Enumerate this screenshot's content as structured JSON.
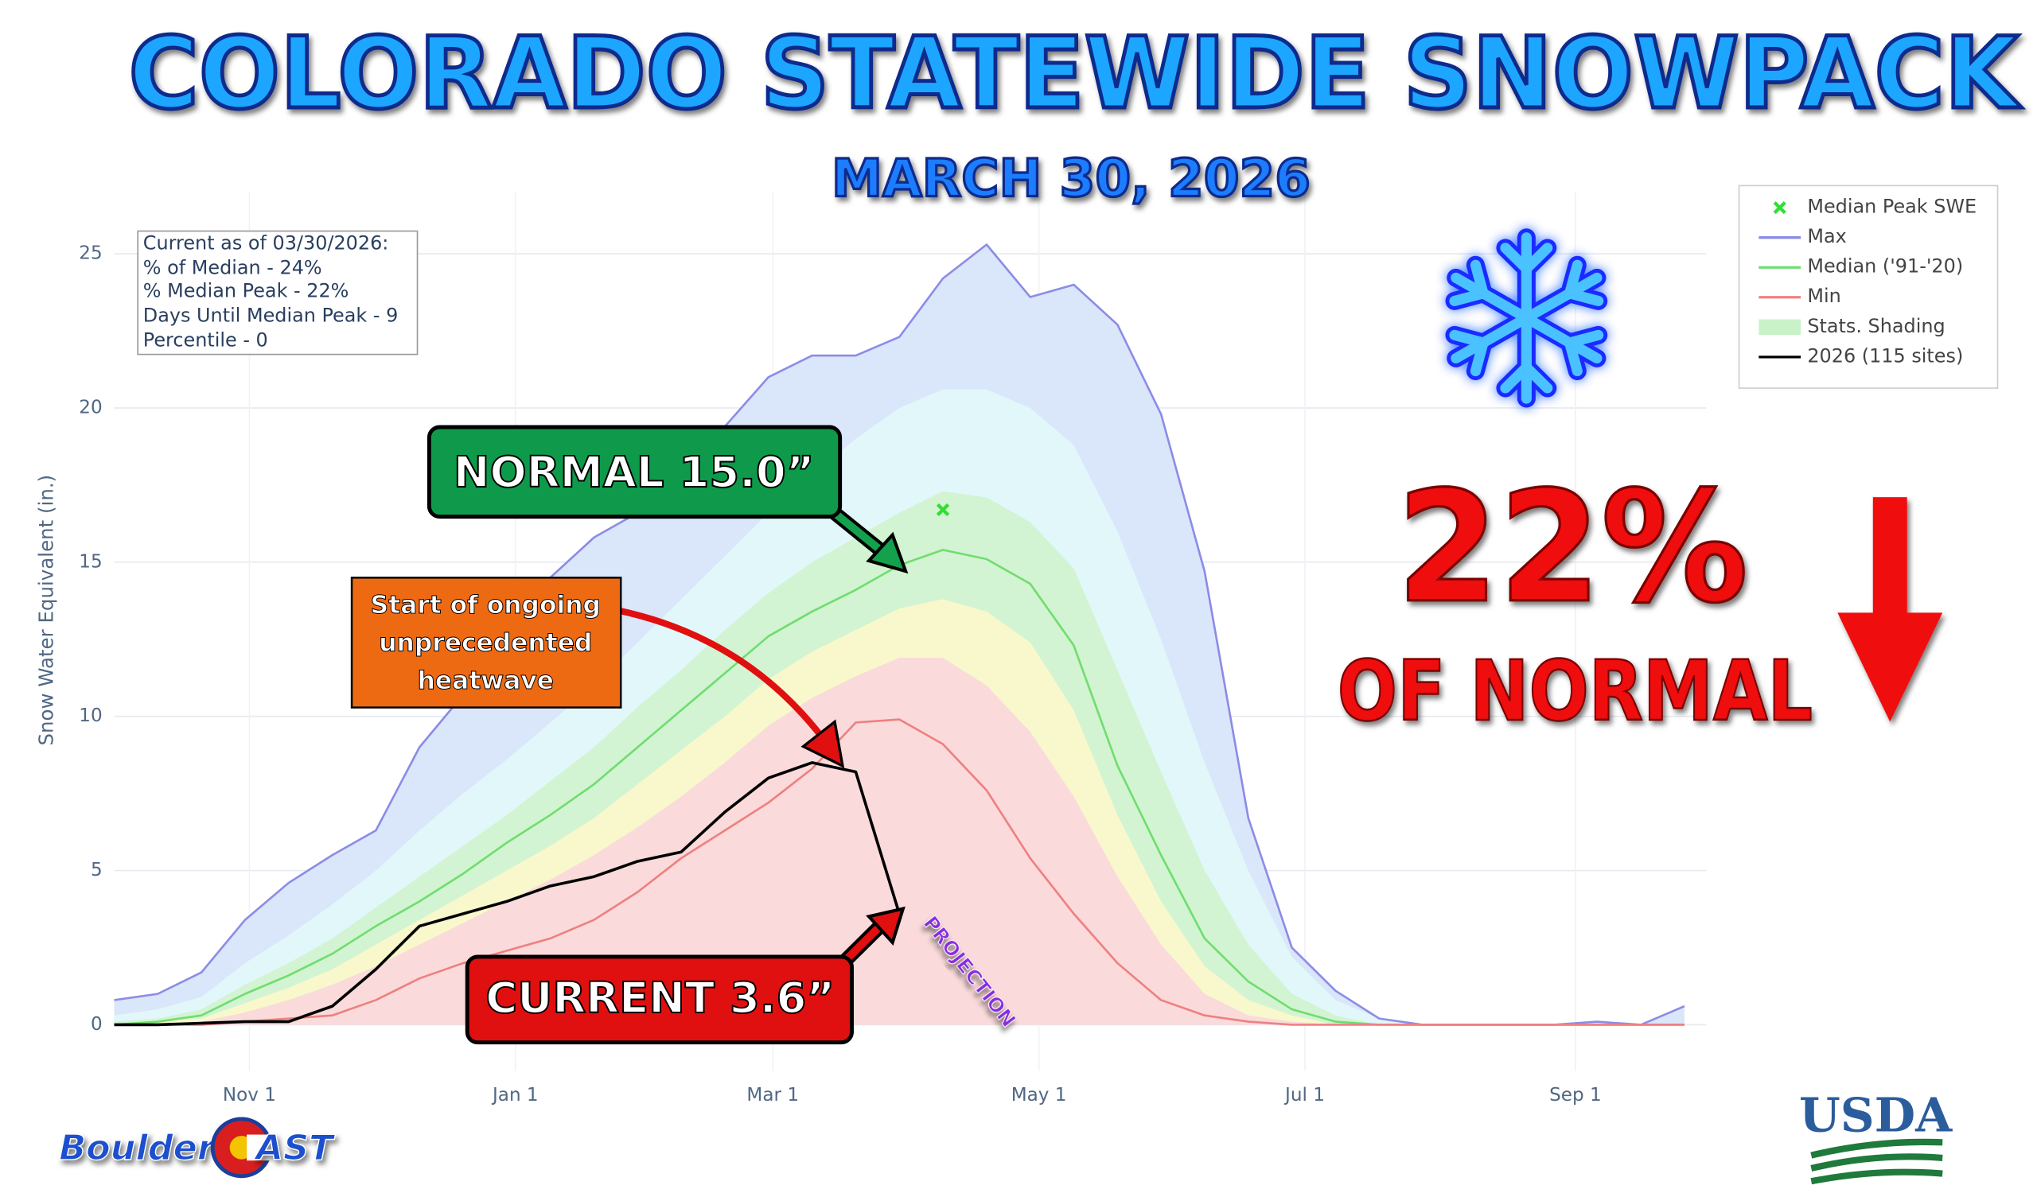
{
  "chart_data": {
    "type": "area",
    "title": "COLORADO STATEWIDE SNOWPACK",
    "subtitle": "MARCH 30, 2026",
    "y_label": "Snow Water Equivalent (in.)",
    "info_box": [
      "Current as of 03/30/2026:",
      "% of Median - 24%",
      "% Median Peak - 22%",
      "Days Until Median Peak - 9",
      "Percentile - 0"
    ],
    "x": [
      0,
      10,
      20,
      30,
      40,
      50,
      60,
      70,
      80,
      90,
      100,
      110,
      120,
      130,
      140,
      150,
      160,
      170,
      180,
      190,
      200,
      210,
      220,
      230,
      240,
      250,
      260,
      270,
      280,
      290,
      300,
      310,
      320,
      330,
      340,
      350,
      360
    ],
    "xlim": [
      0,
      365
    ],
    "xticks": [
      {
        "value": 31,
        "label": "Nov 1"
      },
      {
        "value": 92,
        "label": "Jan 1"
      },
      {
        "value": 151,
        "label": "Mar 1"
      },
      {
        "value": 212,
        "label": "May 1"
      },
      {
        "value": 273,
        "label": "Jul 1"
      },
      {
        "value": 335,
        "label": "Sep 1"
      }
    ],
    "ylim": [
      -1.5,
      27
    ],
    "yticks": [
      0,
      5,
      10,
      15,
      20,
      25
    ],
    "grid": true,
    "legend": "top-right",
    "shading": {
      "name": "Stats. Shading",
      "color": "#c9f2c9",
      "colors": [
        "#dae6fa",
        "#e2f7fa",
        "#d2f4d2",
        "#f8f8cc",
        "#fadada"
      ],
      "bounds": [
        [
          0.3,
          0.5,
          0.9,
          2.0,
          2.9,
          3.9,
          5.0,
          6.3,
          7.5,
          8.6,
          9.8,
          11.0,
          12.4,
          13.8,
          15.2,
          16.6,
          17.8,
          19.0,
          20.0,
          20.6,
          20.6,
          20.0,
          18.8,
          16.0,
          12.5,
          8.5,
          5.0,
          2.2,
          0.8,
          0.2,
          0,
          0,
          0,
          0,
          0,
          0,
          0
        ],
        [
          0.1,
          0.2,
          0.5,
          1.3,
          2.0,
          2.8,
          3.8,
          4.8,
          5.8,
          6.8,
          7.9,
          9.0,
          10.3,
          11.5,
          12.8,
          14.0,
          15.0,
          15.8,
          16.6,
          17.3,
          17.1,
          16.3,
          14.8,
          11.5,
          8.2,
          5.0,
          2.6,
          1.0,
          0.3,
          0,
          0,
          0,
          0,
          0,
          0,
          0,
          0
        ],
        [
          0,
          0.1,
          0.2,
          0.7,
          1.2,
          1.8,
          2.6,
          3.4,
          4.2,
          5.0,
          5.8,
          6.7,
          7.8,
          8.9,
          10.0,
          11.2,
          12.1,
          12.8,
          13.5,
          13.8,
          13.4,
          12.4,
          10.2,
          6.8,
          4.0,
          1.9,
          0.8,
          0.3,
          0,
          0,
          0,
          0,
          0,
          0,
          0,
          0,
          0
        ],
        [
          0,
          0,
          0.1,
          0.4,
          0.8,
          1.3,
          1.9,
          2.6,
          3.3,
          4.0,
          4.7,
          5.5,
          6.4,
          7.4,
          8.5,
          9.7,
          10.6,
          11.3,
          11.9,
          11.9,
          11.0,
          9.5,
          7.4,
          4.8,
          2.6,
          1.0,
          0.3,
          0.1,
          0,
          0,
          0,
          0,
          0,
          0,
          0,
          0,
          0
        ]
      ]
    },
    "peak": {
      "name": "Median Peak SWE",
      "color": "#33dd33",
      "x": 190,
      "value": 16.7
    },
    "series": [
      {
        "name": "Max",
        "color": "#8c8ce6",
        "values": [
          0.8,
          1.0,
          1.7,
          3.4,
          4.6,
          5.5,
          6.3,
          9.0,
          10.7,
          11.4,
          14.5,
          15.8,
          16.6,
          17.7,
          19.4,
          21.0,
          21.7,
          21.7,
          22.3,
          24.2,
          25.3,
          23.6,
          24.0,
          22.7,
          19.8,
          14.7,
          6.7,
          2.5,
          1.1,
          0.2,
          0,
          0,
          0,
          0,
          0.1,
          0,
          0.6
        ]
      },
      {
        "name": "Median ('91-'20)",
        "color": "#70dd70",
        "values": [
          0,
          0.1,
          0.3,
          1.0,
          1.6,
          2.3,
          3.2,
          4.0,
          4.9,
          5.9,
          6.8,
          7.8,
          9.0,
          10.2,
          11.4,
          12.6,
          13.4,
          14.1,
          14.9,
          15.4,
          15.1,
          14.3,
          12.3,
          8.4,
          5.5,
          2.8,
          1.4,
          0.5,
          0.1,
          0,
          0,
          0,
          0,
          0,
          0,
          0,
          0
        ]
      },
      {
        "name": "Min",
        "color": "#ee8080",
        "values": [
          0,
          0,
          0,
          0.1,
          0.2,
          0.3,
          0.8,
          1.5,
          2.0,
          2.4,
          2.8,
          3.4,
          4.3,
          5.4,
          6.3,
          7.2,
          8.3,
          9.8,
          9.9,
          9.1,
          7.6,
          5.4,
          3.6,
          2.0,
          0.8,
          0.3,
          0.1,
          0,
          0,
          0,
          0,
          0,
          0,
          0,
          0,
          0,
          0
        ]
      },
      {
        "name": "2026 (115 sites)",
        "color": "#000000",
        "values": [
          0,
          0,
          0.05,
          0.1,
          0.1,
          0.6,
          1.8,
          3.2,
          3.6,
          4.0,
          4.5,
          4.8,
          5.3,
          5.6,
          6.9,
          8.0,
          8.5,
          8.2,
          3.6,
          null,
          null,
          null,
          null,
          null,
          null,
          null,
          null,
          null,
          null,
          null,
          null,
          null,
          null,
          null,
          null,
          null,
          null
        ]
      }
    ],
    "annotations": {
      "normal": "NORMAL 15.0”",
      "heatwave": [
        "Start of ongoing",
        "unprecedented",
        "heatwave"
      ],
      "current": "CURRENT 3.6”",
      "projection": "PROJECTION",
      "percent": "22%",
      "of_normal": "OF NORMAL"
    }
  },
  "logos": {
    "bouldercast": [
      "Boulder",
      "AST"
    ],
    "usda": "USDA"
  }
}
